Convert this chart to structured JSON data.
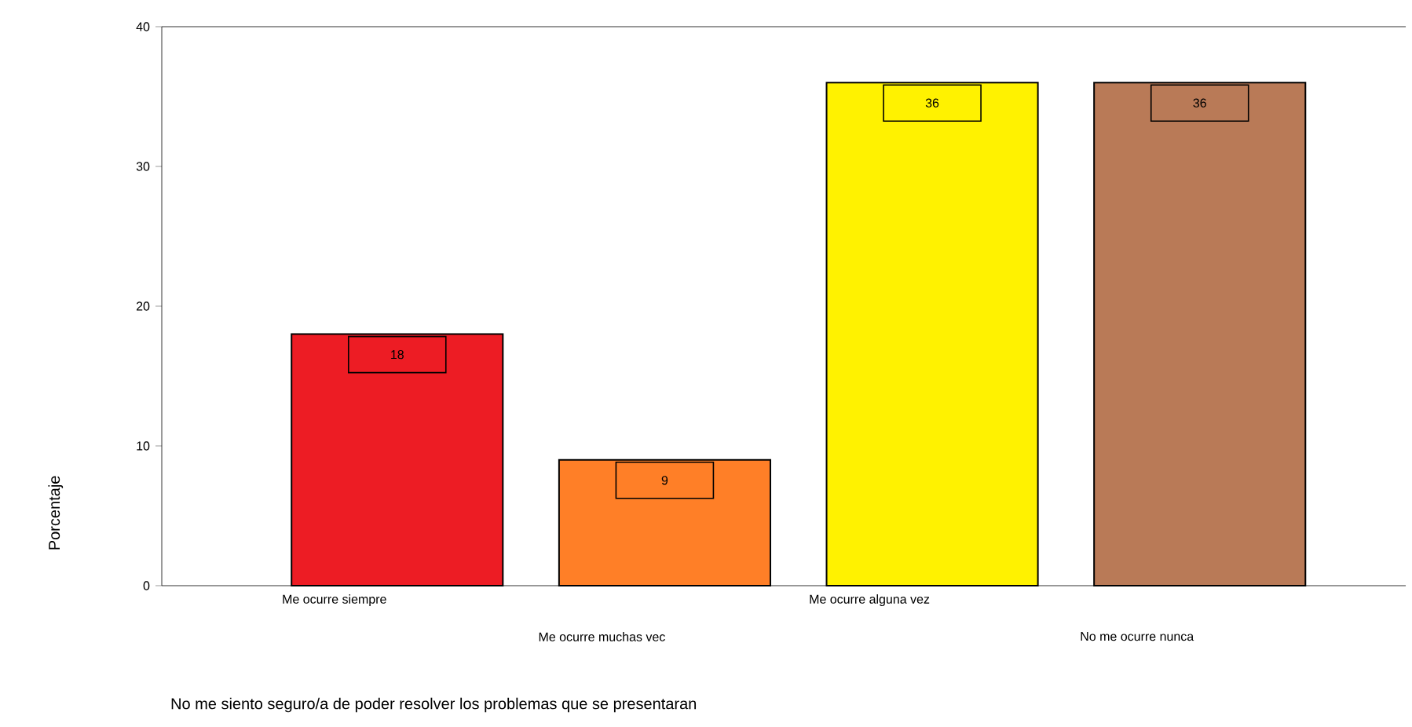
{
  "chart_data": {
    "type": "bar",
    "xlabel": "No me siento seguro/a de poder resolver los problemas que se presentaran",
    "ylabel": "Porcentaje",
    "categories": [
      "Me ocurre siempre",
      "Me ocurre muchas vec",
      "Me ocurre alguna vez",
      "No me ocurre nunca"
    ],
    "values": [
      18,
      9,
      36,
      36
    ],
    "colors": [
      "#ed1c24",
      "#ff7f27",
      "#fff200",
      "#b97a57"
    ],
    "ylim": [
      0,
      40
    ],
    "yticks": [
      0,
      10,
      20,
      30,
      40
    ],
    "data_labels": true,
    "grid": false
  }
}
